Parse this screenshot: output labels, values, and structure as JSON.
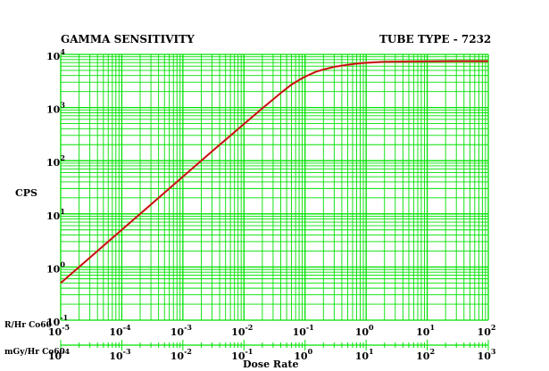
{
  "chart_data": {
    "type": "line",
    "title": "GAMMA SENSITIVITY",
    "subtitle": "TUBE TYPE - 7232",
    "ylabel": "CPS",
    "xlabel": "Dose Rate",
    "x_axis_label_primary": "R/Hr Co60",
    "x_axis_label_secondary": "mGy/Hr Co60",
    "x_scale": "log",
    "y_scale": "log",
    "xlim": [
      1e-05,
      100
    ],
    "ylim": [
      0.1,
      10000
    ],
    "x2lim": [
      0.0001,
      1000
    ],
    "grid": true,
    "x_ticks": [
      {
        "base": "10",
        "exp": "-5"
      },
      {
        "base": "10",
        "exp": "-4"
      },
      {
        "base": "10",
        "exp": "-3"
      },
      {
        "base": "10",
        "exp": "-2"
      },
      {
        "base": "10",
        "exp": "-1"
      },
      {
        "base": "10",
        "exp": "0"
      },
      {
        "base": "10",
        "exp": "1"
      },
      {
        "base": "10",
        "exp": "2"
      }
    ],
    "x2_ticks": [
      {
        "base": "10",
        "exp": "-4"
      },
      {
        "base": "10",
        "exp": "-3"
      },
      {
        "base": "10",
        "exp": "-2"
      },
      {
        "base": "10",
        "exp": "-1"
      },
      {
        "base": "10",
        "exp": "0"
      },
      {
        "base": "10",
        "exp": "1"
      },
      {
        "base": "10",
        "exp": "2"
      },
      {
        "base": "10",
        "exp": "3"
      }
    ],
    "y_ticks": [
      {
        "base": "10",
        "exp": "-1"
      },
      {
        "base": "10",
        "exp": "0"
      },
      {
        "base": "10",
        "exp": "1"
      },
      {
        "base": "10",
        "exp": "2"
      },
      {
        "base": "10",
        "exp": "3"
      },
      {
        "base": "10",
        "exp": "4"
      }
    ],
    "series": [
      {
        "x": [
          1e-05,
          3e-05,
          0.0001,
          0.0003,
          0.001,
          0.003,
          0.01,
          0.02,
          0.04,
          0.06,
          0.08,
          0.1,
          0.15,
          0.2,
          0.3,
          0.5,
          0.7,
          1,
          2,
          5,
          10,
          30,
          100
        ],
        "y": [
          0.5,
          1.5,
          5,
          15,
          50,
          150,
          490,
          970,
          1880,
          2700,
          3300,
          3800,
          4700,
          5200,
          5850,
          6400,
          6700,
          6950,
          7250,
          7350,
          7400,
          7450,
          7450
        ]
      }
    ],
    "colors": {
      "grid": "#00e000",
      "curve": "#ff3030",
      "curve_core": "#8b0000",
      "text": "#000000",
      "background": "#ffffff"
    }
  }
}
